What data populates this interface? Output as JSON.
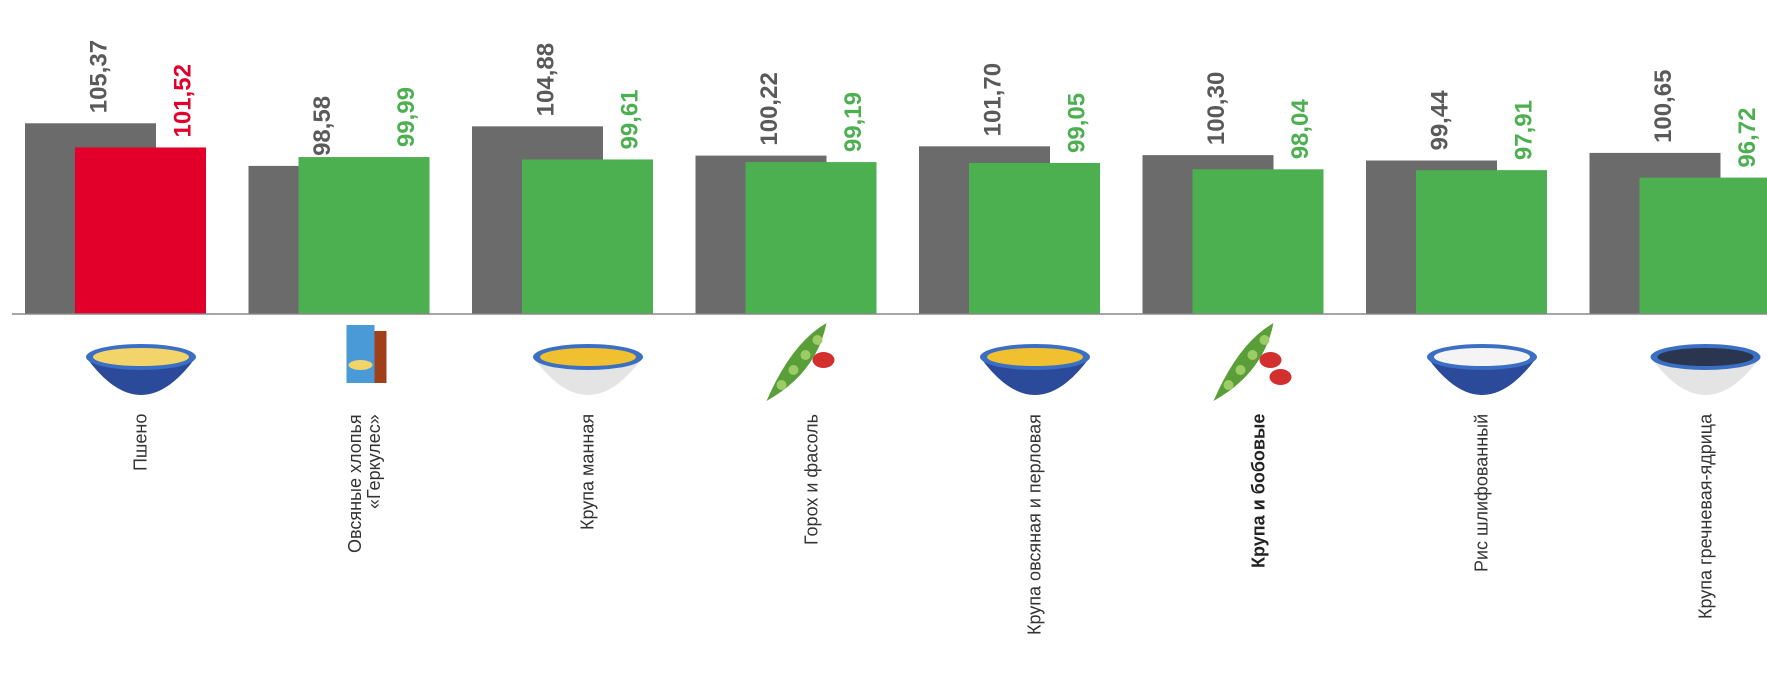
{
  "chart_data": {
    "type": "bar",
    "categories": [
      "Пшено",
      "Овсяные хлопья\n«Геркулес»",
      "Крупа манная",
      "Горох и фасоль",
      "Крупа овсяная и перловая",
      "Крупа и бобовые",
      "Рис шлифованный",
      "Крупа гречневая-ядрица"
    ],
    "bold_category": 5,
    "series": [
      {
        "color": "#6b6b6b",
        "label_color": "#5a5a5a",
        "values": [
          105.37,
          98.58,
          104.88,
          100.22,
          101.7,
          100.3,
          99.44,
          100.65
        ],
        "value_labels": [
          "105,37",
          "98,58",
          "104,88",
          "100,22",
          "101,70",
          "100,30",
          "99,44",
          "100,65"
        ]
      },
      {
        "colors": [
          "#e2002b",
          "#4caf50",
          "#4caf50",
          "#4caf50",
          "#4caf50",
          "#4caf50",
          "#4caf50",
          "#4caf50"
        ],
        "values": [
          101.52,
          99.99,
          99.61,
          99.19,
          99.05,
          98.04,
          97.91,
          96.72
        ],
        "value_labels": [
          "101,52",
          "99,99",
          "99,61",
          "99,19",
          "99,05",
          "98,04",
          "97,91",
          "96,72"
        ]
      }
    ],
    "ylim": [
      75,
      125
    ]
  }
}
